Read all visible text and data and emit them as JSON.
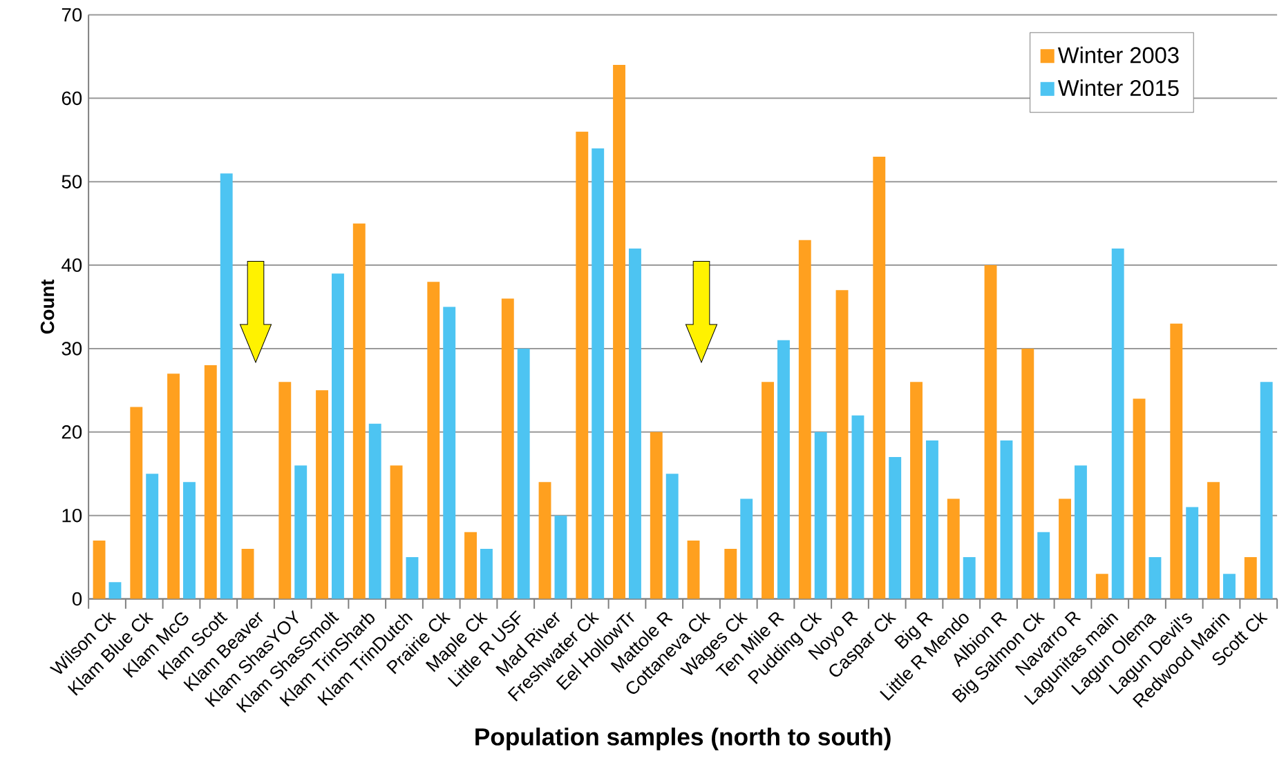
{
  "chart_data": {
    "type": "bar",
    "xlabel": "Population samples (north to south)",
    "ylabel": "Count",
    "categories": [
      "Wilson Ck",
      "Klam Blue Ck",
      "Klam McG",
      "Klam Scott",
      "Klam Beaver",
      "Klam ShasYOY",
      "Klam ShasSmolt",
      "Klam TrinSharb",
      "Klam TrinDutch",
      "Prairie Ck",
      "Maple Ck",
      "Little R USF",
      "Mad River",
      "Freshwater Ck",
      "Eel HollowTr",
      "Mattole R",
      "Cottaneva Ck",
      "Wages Ck",
      "Ten Mile R",
      "Pudding Ck",
      "Noyo R",
      "Caspar Ck",
      "Big R",
      "Little R Mendo",
      "Albion R",
      "Big Salmon Ck",
      "Navarro R",
      "Lagunitas main",
      "Lagun Olema",
      "Lagun Devil's",
      "Redwood Marin",
      "Scott Ck"
    ],
    "series": [
      {
        "name": "Winter 2003",
        "color": "#ffa01f",
        "values": [
          7,
          23,
          27,
          28,
          6,
          26,
          25,
          45,
          16,
          38,
          8,
          36,
          14,
          56,
          64,
          20,
          7,
          6,
          26,
          43,
          37,
          53,
          26,
          12,
          40,
          30,
          12,
          3,
          24,
          33,
          14,
          5
        ]
      },
      {
        "name": "Winter 2015",
        "color": "#4dc4f2",
        "values": [
          2,
          15,
          14,
          51,
          null,
          16,
          39,
          21,
          5,
          35,
          6,
          30,
          10,
          54,
          42,
          15,
          null,
          12,
          31,
          20,
          22,
          17,
          19,
          5,
          19,
          8,
          16,
          42,
          5,
          11,
          3,
          26
        ]
      }
    ],
    "ylim": [
      0,
      70
    ],
    "yticks": [
      0,
      10,
      20,
      30,
      40,
      50,
      60,
      70
    ],
    "grid": "y",
    "legend": "top right"
  }
}
